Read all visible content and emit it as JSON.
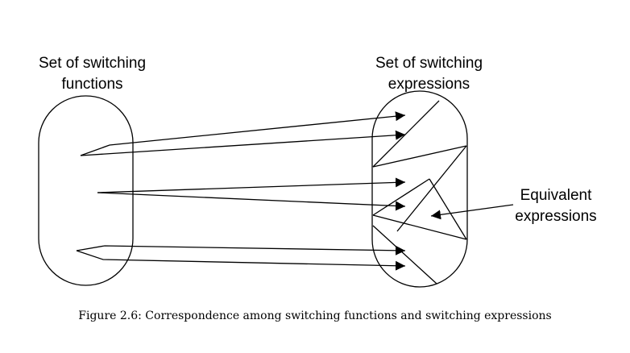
{
  "left_set": {
    "line1": "Set of switching",
    "line2": "functions"
  },
  "right_set": {
    "line1": "Set of switching",
    "line2": "expressions"
  },
  "equivalent": {
    "line1": "Equivalent",
    "line2": "expressions"
  },
  "caption": "Figure 2.6: Correspondence among switching functions and switching expressions",
  "colors": {
    "ink": "#000000",
    "background": "#ffffff"
  }
}
